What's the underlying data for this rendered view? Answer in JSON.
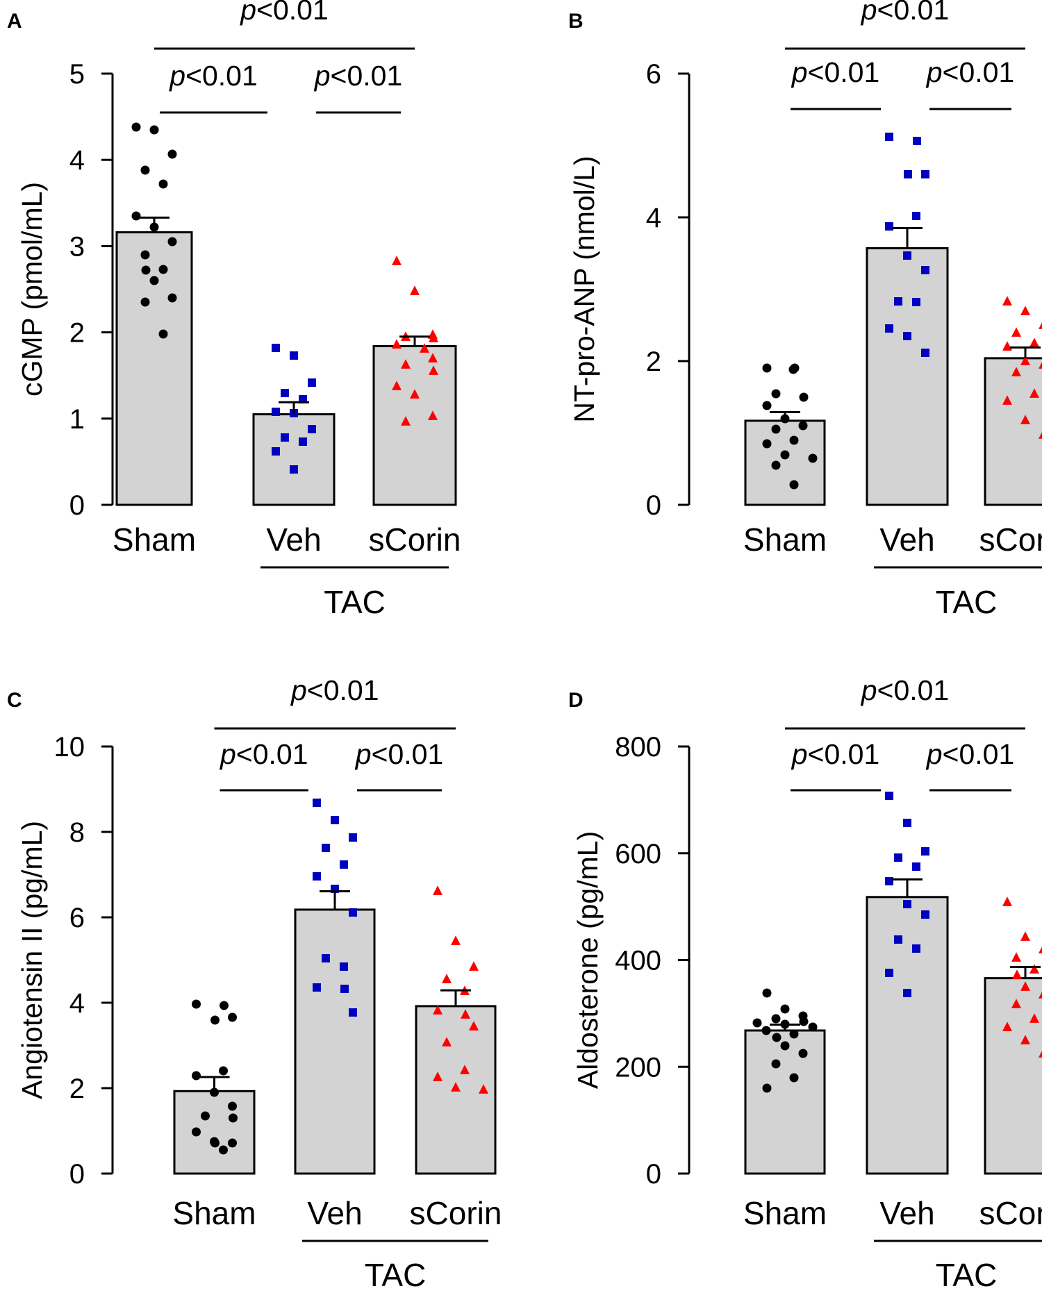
{
  "colors": {
    "sham": "#000000",
    "veh": "#0000c0",
    "scorin": "#ff0000",
    "bar_fill": "#d3d3d3"
  },
  "chart_data": [
    {
      "panel": "A",
      "type": "bar",
      "ylabel": "cGMP (pmol/mL)",
      "ylim": [
        0,
        5
      ],
      "yticks": [
        0,
        1,
        2,
        3,
        4,
        5
      ],
      "categories": [
        "Sham",
        "Veh",
        "sCorin"
      ],
      "group_label": "TAC",
      "group_span": [
        "Veh",
        "sCorin"
      ],
      "means": [
        3.16,
        1.05,
        1.84
      ],
      "sem": [
        0.17,
        0.14,
        0.11
      ],
      "points": [
        [
          4.38,
          4.35,
          4.07,
          3.88,
          3.72,
          3.35,
          3.22,
          3.05,
          2.9,
          2.73,
          2.72,
          2.6,
          2.4,
          2.35,
          1.98
        ],
        [
          1.82,
          1.73,
          1.42,
          1.3,
          1.22,
          1.08,
          1.06,
          0.88,
          0.78,
          0.73,
          0.62,
          0.41
        ],
        [
          2.83,
          2.48,
          1.97,
          1.95,
          1.93,
          1.86,
          1.81,
          1.7,
          1.63,
          1.55,
          1.38,
          1.28,
          1.03,
          0.97
        ]
      ],
      "significance": [
        {
          "from": "Sham",
          "to": "sCorin",
          "label": "p<0.01",
          "level": 0
        },
        {
          "from": "Sham",
          "to": "Veh",
          "label": "p<0.01",
          "level": 1
        },
        {
          "from": "Veh",
          "to": "sCorin",
          "label": "p<0.01",
          "level": 1
        }
      ]
    },
    {
      "panel": "B",
      "type": "bar",
      "ylabel": "NT-pro-ANP (nmol/L)",
      "ylim": [
        0,
        6
      ],
      "yticks": [
        0,
        2,
        4,
        6
      ],
      "categories": [
        "Sham",
        "Veh",
        "sCorin"
      ],
      "group_label": "TAC",
      "group_span": [
        "Veh",
        "sCorin"
      ],
      "means": [
        1.17,
        3.57,
        2.04
      ],
      "sem": [
        0.12,
        0.28,
        0.15
      ],
      "points": [
        [
          1.9,
          1.9,
          1.88,
          1.55,
          1.5,
          1.38,
          1.2,
          1.1,
          1.05,
          0.9,
          0.85,
          0.7,
          0.65,
          0.55,
          0.28
        ],
        [
          5.12,
          5.06,
          4.6,
          4.6,
          4.02,
          3.87,
          3.47,
          3.27,
          2.83,
          2.82,
          2.45,
          2.35,
          2.12
        ],
        [
          2.83,
          2.7,
          2.5,
          2.4,
          2.25,
          2.2,
          2.0,
          1.95,
          1.85,
          1.55,
          1.45,
          1.18,
          0.98
        ]
      ],
      "significance": [
        {
          "from": "Sham",
          "to": "sCorin",
          "label": "p<0.01",
          "level": 0
        },
        {
          "from": "Sham",
          "to": "Veh",
          "label": "p<0.01",
          "level": 1
        },
        {
          "from": "Veh",
          "to": "sCorin",
          "label": "p<0.01",
          "level": 1
        }
      ]
    },
    {
      "panel": "C",
      "type": "bar",
      "ylabel": "Angiotensin II (pg/mL)",
      "ylim": [
        0,
        10
      ],
      "yticks": [
        0,
        2,
        4,
        6,
        8,
        10
      ],
      "categories": [
        "Sham",
        "Veh",
        "sCorin"
      ],
      "group_label": "TAC",
      "group_span": [
        "Veh",
        "sCorin"
      ],
      "means": [
        1.93,
        6.18,
        3.92
      ],
      "sem": [
        0.33,
        0.43,
        0.37
      ],
      "points": [
        [
          3.97,
          3.93,
          3.66,
          3.6,
          2.41,
          2.3,
          1.9,
          1.58,
          1.35,
          1.3,
          0.97,
          0.75,
          0.72,
          0.71,
          0.55
        ],
        [
          8.68,
          8.28,
          7.87,
          7.62,
          7.24,
          6.96,
          6.67,
          6.11,
          5.04,
          4.84,
          4.36,
          4.32,
          3.77
        ],
        [
          6.62,
          5.45,
          4.84,
          4.55,
          4.27,
          3.82,
          3.73,
          3.44,
          3.07,
          2.42,
          2.26,
          2.02,
          1.97
        ]
      ],
      "significance": [
        {
          "from": "Sham",
          "to": "sCorin",
          "label": "p<0.01",
          "level": 0
        },
        {
          "from": "Sham",
          "to": "Veh",
          "label": "p<0.01",
          "level": 1
        },
        {
          "from": "Veh",
          "to": "sCorin",
          "label": "p<0.01",
          "level": 1
        }
      ]
    },
    {
      "panel": "D",
      "type": "bar",
      "ylabel": "Aldosterone (pg/mL)",
      "ylim": [
        0,
        800
      ],
      "yticks": [
        0,
        200,
        400,
        600,
        800
      ],
      "categories": [
        "Sham",
        "Veh",
        "sCorin"
      ],
      "group_label": "TAC",
      "group_span": [
        "Veh",
        "sCorin"
      ],
      "means": [
        268,
        518,
        366
      ],
      "sem": [
        11,
        33,
        21
      ],
      "points": [
        [
          338,
          308,
          295,
          290,
          285,
          282,
          280,
          275,
          268,
          262,
          255,
          240,
          225,
          205,
          180,
          160
        ],
        [
          708,
          657,
          603,
          592,
          575,
          548,
          505,
          485,
          438,
          422,
          376,
          338
        ],
        [
          508,
          443,
          420,
          405,
          383,
          372,
          350,
          335,
          318,
          290,
          275,
          250,
          225
        ]
      ],
      "significance": [
        {
          "from": "Sham",
          "to": "sCorin",
          "label": "p<0.01",
          "level": 0
        },
        {
          "from": "Sham",
          "to": "Veh",
          "label": "p<0.01",
          "level": 1
        },
        {
          "from": "Veh",
          "to": "sCorin",
          "label": "p<0.01",
          "level": 1
        }
      ]
    }
  ]
}
